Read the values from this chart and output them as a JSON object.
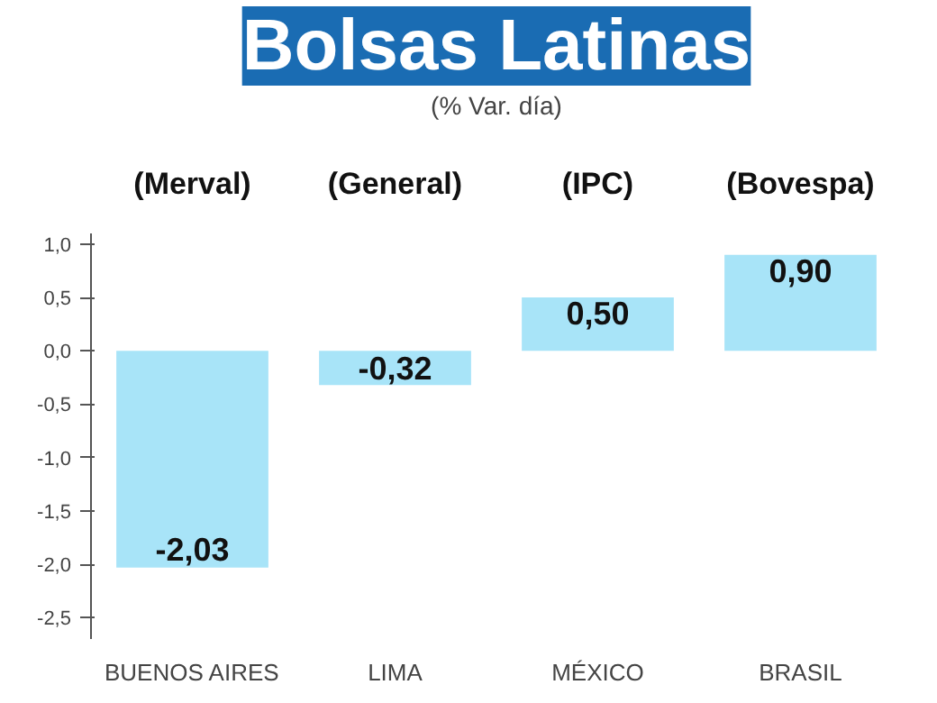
{
  "chart_data": {
    "type": "bar",
    "title": "Bolsas Latinas",
    "subtitle": "(% Var. día)",
    "categories": [
      "BUENOS AIRES",
      "LIMA",
      "MÉXICO",
      "BRASIL"
    ],
    "values": [
      -2.03,
      -0.32,
      0.5,
      0.9
    ],
    "value_labels": [
      "-2,03",
      "-0,32",
      "0,50",
      "0,90"
    ],
    "color": "#a8e4f8",
    "annotations": [
      "(Merval)",
      "(General)",
      "(IPC)",
      "(Bovespa)"
    ],
    "ylim": [
      -2.7,
      1.1
    ],
    "yticks": [
      {
        "value": 1.0,
        "label": "1,0"
      },
      {
        "value": 0.5,
        "label": "0,5"
      },
      {
        "value": 0.0,
        "label": "0,0"
      },
      {
        "value": -0.5,
        "label": "-0,5"
      },
      {
        "value": -1.0,
        "label": "-1,0"
      },
      {
        "value": -1.5,
        "label": "-1,5"
      },
      {
        "value": -2.0,
        "label": "-2,0"
      },
      {
        "value": -2.5,
        "label": "-2,5"
      }
    ],
    "grid": false
  }
}
